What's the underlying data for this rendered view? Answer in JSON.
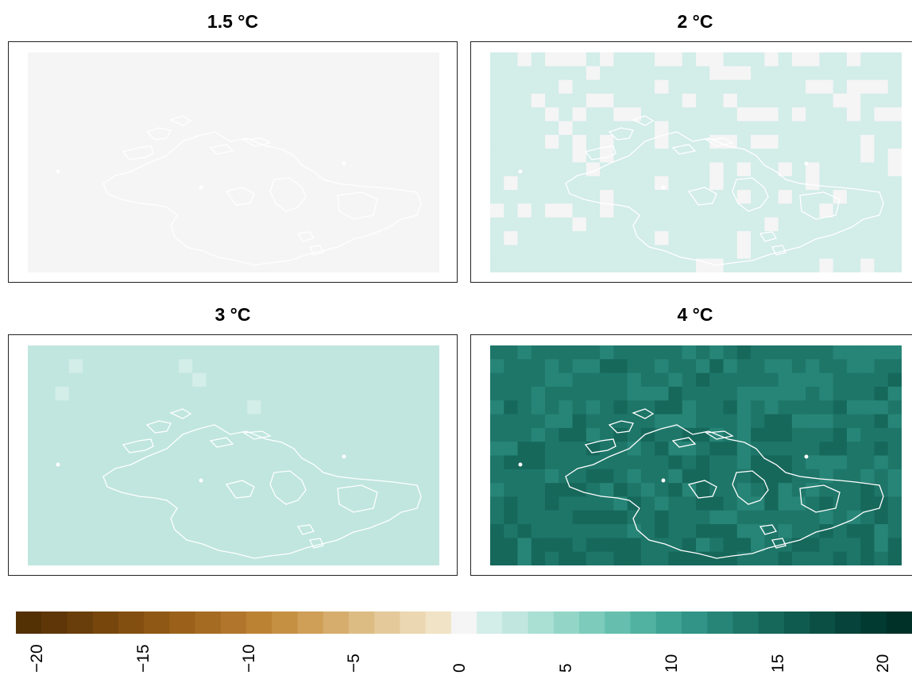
{
  "chart_data": {
    "type": "heatmap",
    "panels": [
      {
        "title": "1.5 °C",
        "level": 0.25,
        "variation": 0.02,
        "ramp": 0.0
      },
      {
        "title": "2 °C",
        "level": 0.7,
        "variation": 0.15,
        "ramp": 0.05
      },
      {
        "title": "3 °C",
        "level": 2.3,
        "variation": 0.5,
        "ramp": 0.2
      },
      {
        "title": "4 °C",
        "level": 13.5,
        "variation": 1.2,
        "ramp": 0.8
      }
    ],
    "colorbar": {
      "min": -22,
      "max": 22,
      "ticks": [
        "−20",
        "−15",
        "−10",
        "−5",
        "0",
        "5",
        "10",
        "15",
        "20"
      ],
      "tick_values": [
        -20,
        -15,
        -10,
        -5,
        0,
        5,
        10,
        15,
        20
      ],
      "colors": [
        "#543005",
        "#5e3607",
        "#693e0a",
        "#76460d",
        "#834f10",
        "#8f5814",
        "#9b611a",
        "#a66b22",
        "#b1762b",
        "#bc8234",
        "#c69043",
        "#cf9e57",
        "#d6ad6d",
        "#ddbc84",
        "#e4ca9b",
        "#ebd7b1",
        "#f1e3c6",
        "#f5f5f5",
        "#d3ede9",
        "#c0e6df",
        "#aadfd4",
        "#93d6c8",
        "#7ccbbb",
        "#66bfae",
        "#51b2a1",
        "#3fa394",
        "#319486",
        "#278577",
        "#1e7669",
        "#16685b",
        "#105b4f",
        "#0b4f44",
        "#06433a",
        "#013a30",
        "#003129"
      ]
    }
  }
}
